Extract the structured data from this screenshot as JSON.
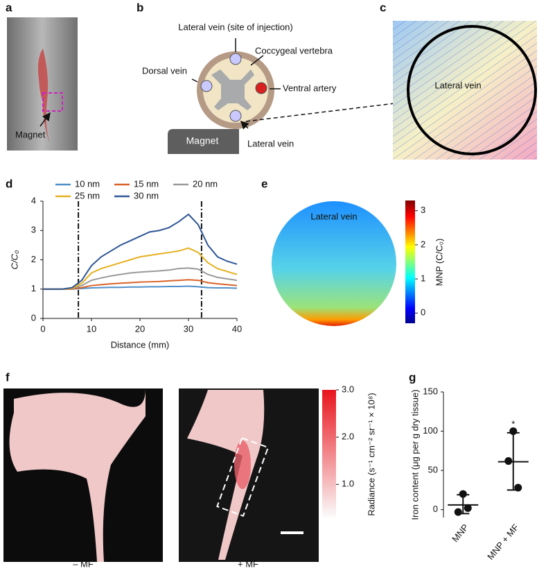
{
  "panel_labels": [
    "a",
    "b",
    "c",
    "d",
    "e",
    "f",
    "g"
  ],
  "a": {
    "label": "Magnet"
  },
  "b": {
    "labels": [
      "Lateral vein (site of injection)",
      "Coccygeal vertebra",
      "Dorsal vein",
      "Ventral artery",
      "Lateral vein",
      "Magnet"
    ]
  },
  "c": {
    "label": "Lateral vein"
  },
  "e": {
    "label": "Lateral vein",
    "colorbar": {
      "label": "MNP (C/C₀)",
      "ylim": [
        -0.3,
        3.3
      ],
      "yticks": [
        0,
        1,
        2,
        3
      ]
    }
  },
  "f": {
    "labels": [
      "– MF",
      "+ MF"
    ],
    "colorbar": {
      "label": "Radiance (s⁻¹ cm⁻² sr⁻¹ × 10⁸)",
      "ylim": [
        0.3,
        3.0
      ],
      "yticks": [
        {
          "value": 1.0,
          "label": "1.0"
        },
        {
          "value": 2.0,
          "label": "2.0"
        },
        {
          "value": 3.0,
          "label": "3.0"
        }
      ]
    }
  },
  "chart_data": [
    {
      "type": "line",
      "x_label": "Distance (mm)",
      "y_label": "C/C₀",
      "x": [
        0,
        2,
        4,
        6,
        8,
        10,
        12,
        14,
        16,
        18,
        20,
        22,
        24,
        26,
        28,
        30,
        32,
        34,
        36,
        38,
        40
      ],
      "series": [
        {
          "name": "10 nm",
          "color": "#4f8fc9",
          "values": [
            1,
            1,
            1,
            1,
            1.02,
            1.04,
            1.05,
            1.06,
            1.06,
            1.07,
            1.07,
            1.08,
            1.08,
            1.09,
            1.09,
            1.1,
            1.08,
            1.05,
            1.04,
            1.04,
            1.03
          ]
        },
        {
          "name": "15 nm",
          "color": "#d8632a",
          "values": [
            1,
            1,
            1,
            1,
            1.05,
            1.12,
            1.15,
            1.18,
            1.2,
            1.22,
            1.24,
            1.25,
            1.26,
            1.28,
            1.3,
            1.32,
            1.3,
            1.22,
            1.18,
            1.15,
            1.12
          ]
        },
        {
          "name": "20 nm",
          "color": "#9a9a9a",
          "values": [
            1,
            1,
            1,
            1.02,
            1.12,
            1.3,
            1.38,
            1.45,
            1.5,
            1.55,
            1.58,
            1.6,
            1.62,
            1.65,
            1.7,
            1.72,
            1.68,
            1.5,
            1.4,
            1.35,
            1.3
          ]
        },
        {
          "name": "25 nm",
          "color": "#e5b01f",
          "values": [
            1,
            1,
            1,
            1.03,
            1.2,
            1.55,
            1.7,
            1.8,
            1.9,
            2.0,
            2.1,
            2.15,
            2.2,
            2.25,
            2.3,
            2.4,
            2.25,
            1.9,
            1.7,
            1.6,
            1.5
          ]
        },
        {
          "name": "30 nm",
          "color": "#2e5596",
          "values": [
            1,
            1,
            1,
            1.05,
            1.3,
            1.8,
            2.1,
            2.3,
            2.5,
            2.65,
            2.8,
            2.95,
            3.0,
            3.1,
            3.3,
            3.55,
            3.2,
            2.5,
            2.1,
            1.95,
            1.85
          ]
        }
      ],
      "vlines": [
        7.3,
        32.7
      ],
      "xlim": [
        0,
        40
      ],
      "xticks": [
        0,
        10,
        20,
        30,
        40
      ],
      "ylim": [
        0,
        4
      ],
      "yticks": [
        0,
        1,
        2,
        3,
        4
      ]
    },
    {
      "type": "dot",
      "y_label": "Iron content (μg per g dry tissue)",
      "categories": [
        "MNP",
        "MNP + MF"
      ],
      "points": [
        [
          20,
          -3,
          2
        ],
        [
          100,
          62,
          28
        ]
      ],
      "values": [
        6,
        61
      ],
      "error_low": [
        -5,
        25
      ],
      "error_high": [
        19,
        98
      ],
      "annotations": [
        "",
        "*"
      ],
      "ylim": [
        -10,
        150
      ],
      "yticks": [
        0,
        50,
        100,
        150
      ]
    }
  ]
}
